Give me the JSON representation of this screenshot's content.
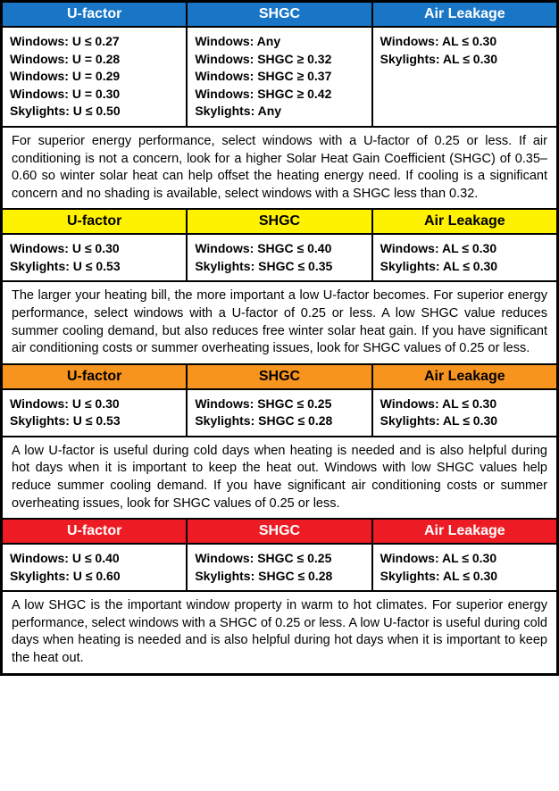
{
  "colors": {
    "blue": "#1976c6",
    "yellow": "#fff200",
    "orange": "#f7941d",
    "red": "#ed1c24",
    "white": "#ffffff",
    "black": "#000000"
  },
  "columns": [
    "U-factor",
    "SHGC",
    "Air Leakage"
  ],
  "sections": [
    {
      "color_class": "header-blue",
      "u_factor": "Windows: U ≤ 0.27\nWindows: U = 0.28\nWindows: U = 0.29\nWindows: U = 0.30\nSkylights: U ≤ 0.50",
      "shgc": "Windows: Any\nWindows: SHGC ≥ 0.32\nWindows: SHGC ≥ 0.37\nWindows: SHGC ≥ 0.42\nSkylights: Any",
      "air_leakage": "Windows: AL ≤ 0.30\nSkylights: AL ≤ 0.30",
      "description": "For superior energy performance, select windows with a U-factor of 0.25 or less. If air conditioning is not a concern, look for a higher Solar Heat Gain Coefficient (SHGC) of 0.35–0.60 so winter solar heat can help offset the heating energy need. If cooling is a significant concern and no shading is available, select windows with a SHGC less than 0.32."
    },
    {
      "color_class": "header-yellow",
      "u_factor": "Windows: U ≤ 0.30\nSkylights: U ≤ 0.53",
      "shgc": "Windows: SHGC ≤ 0.40\nSkylights: SHGC ≤ 0.35",
      "air_leakage": "Windows: AL ≤ 0.30\nSkylights: AL ≤ 0.30",
      "description": "The larger your heating bill, the more important a low U-factor becomes. For superior energy performance, select windows with a U-factor of 0.25 or less. A low SHGC value reduces summer cooling demand, but also reduces free winter solar heat gain. If you have significant air conditioning costs or summer overheating issues, look for SHGC values of 0.25 or less."
    },
    {
      "color_class": "header-orange",
      "u_factor": "Windows: U ≤ 0.30\nSkylights: U ≤ 0.53",
      "shgc": "Windows: SHGC ≤ 0.25\nSkylights: SHGC ≤ 0.28",
      "air_leakage": "Windows: AL ≤ 0.30\nSkylights: AL ≤ 0.30",
      "description": "A low U-factor is useful during cold days when heating is needed and is also helpful during hot days when it is important to keep the heat out. Windows with low SHGC values help reduce summer cooling demand. If you have significant air conditioning costs or summer overheating issues, look for SHGC values of 0.25 or less."
    },
    {
      "color_class": "header-red",
      "u_factor": "Windows: U ≤ 0.40\nSkylights: U ≤ 0.60",
      "shgc": "Windows: SHGC ≤ 0.25\nSkylights: SHGC ≤ 0.28",
      "air_leakage": "Windows: AL ≤ 0.30\nSkylights: AL ≤ 0.30",
      "description": "A low SHGC is the important window property in warm to hot climates. For superior energy performance, select windows with a SHGC of 0.25 or less. A low U-factor is useful during cold days when heating is needed and is also helpful during hot days when it is important to keep the heat out."
    }
  ]
}
